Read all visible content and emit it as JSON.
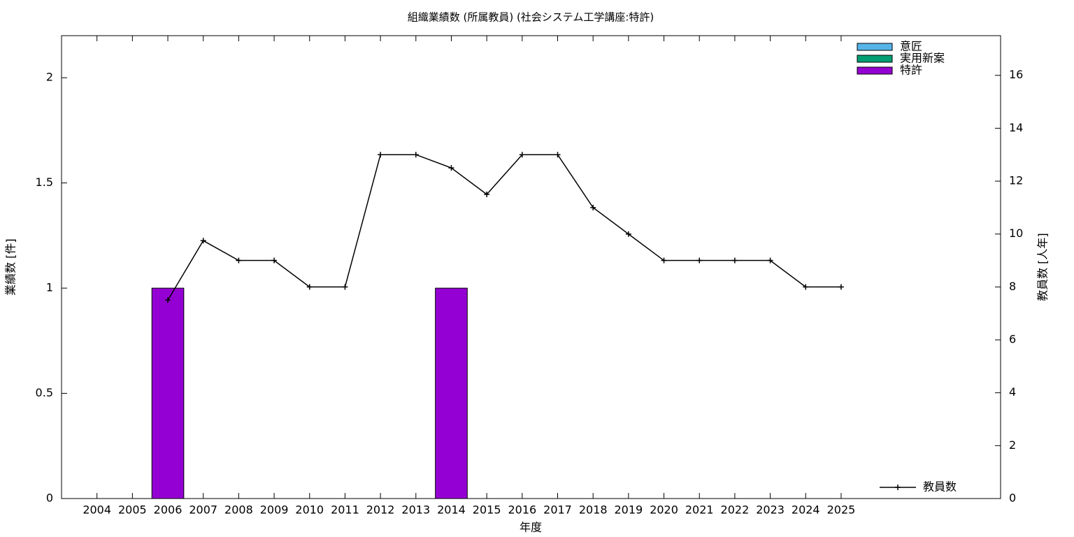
{
  "chart_data": {
    "type": "bar",
    "title": "組織業績数 (所属教員) (社会システム工学講座:特許)",
    "x_label": "年度",
    "y_label": "業績数 [件]",
    "y2_label": "教員数 [人年]",
    "categories": [
      "2004",
      "2005",
      "2006",
      "2007",
      "2008",
      "2009",
      "2010",
      "2011",
      "2012",
      "2013",
      "2014",
      "2015",
      "2016",
      "2017",
      "2018",
      "2019",
      "2020",
      "2021",
      "2022",
      "2023",
      "2024",
      "2025"
    ],
    "stacked": true,
    "series": [
      {
        "name": "意匠",
        "color": "#56b4e9",
        "values": [
          0,
          0,
          0,
          0,
          0,
          0,
          0,
          0,
          0,
          0,
          0,
          0,
          0,
          0,
          0,
          0,
          0,
          0,
          0,
          0,
          0,
          0
        ]
      },
      {
        "name": "実用新案",
        "color": "#009e73",
        "values": [
          0,
          0,
          0,
          0,
          0,
          0,
          0,
          0,
          0,
          0,
          0,
          0,
          0,
          0,
          0,
          0,
          0,
          0,
          0,
          0,
          0,
          0
        ]
      },
      {
        "name": "特許",
        "color": "#9400d3",
        "values": [
          0,
          0,
          1,
          0,
          0,
          0,
          0,
          0,
          0,
          0,
          1,
          0,
          0,
          0,
          0,
          0,
          0,
          0,
          0,
          0,
          0,
          0
        ]
      },
      {
        "name": "教員数",
        "type": "line",
        "axis": "y2",
        "color": "#000000",
        "values": [
          null,
          null,
          7.5,
          9.75,
          9,
          9,
          8,
          8,
          13,
          13,
          12.5,
          11.5,
          13,
          13,
          11,
          10,
          9,
          9,
          9,
          9,
          8,
          8
        ]
      }
    ],
    "ylim": [
      0,
      2.2
    ],
    "yticks": [
      0,
      0.5,
      1,
      1.5,
      2
    ],
    "y2lim": [
      0,
      17.5
    ],
    "y2ticks": [
      0,
      2,
      4,
      6,
      8,
      10,
      12,
      14,
      16
    ],
    "legend": "top-right",
    "line_legend": "bottom-right"
  }
}
